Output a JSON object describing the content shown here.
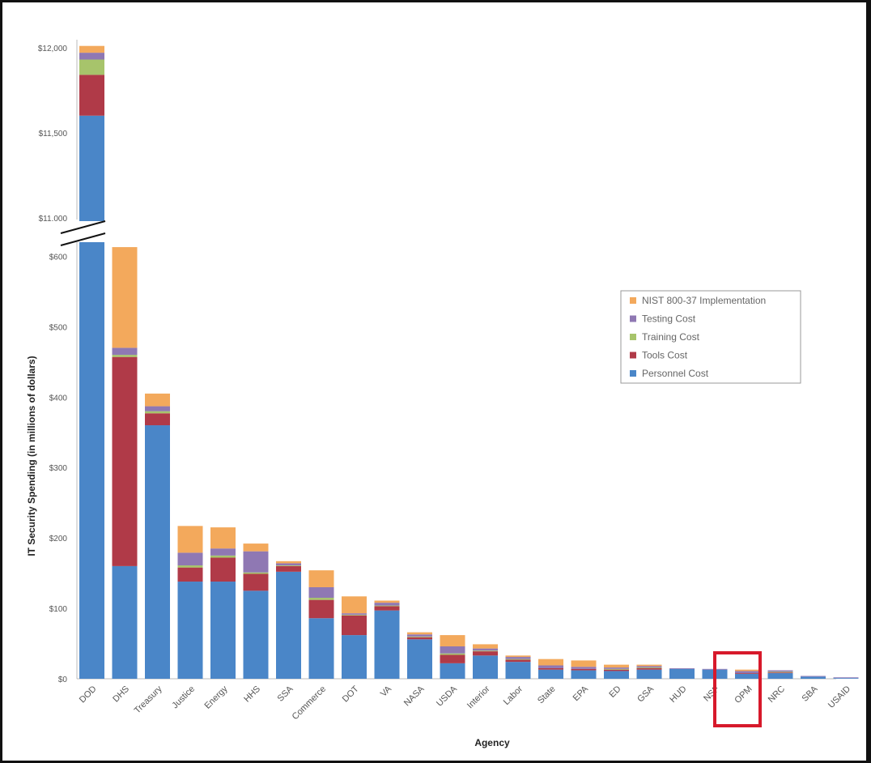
{
  "chart_data": {
    "type": "bar",
    "stacked": true,
    "xlabel": "Agency",
    "ylabel": "IT Security Spending (in millions of dollars)",
    "categories": [
      "DOD",
      "DHS",
      "Treasury",
      "Justice",
      "Energy",
      "HHS",
      "SSA",
      "Commerce",
      "DOT",
      "VA",
      "NASA",
      "USDA",
      "Interior",
      "Labor",
      "State",
      "EPA",
      "ED",
      "GSA",
      "HUD",
      "NSF",
      "OPM",
      "NRC",
      "SBA",
      "USAID"
    ],
    "y_ticks_lower": [
      "$0",
      "$100",
      "$200",
      "$300",
      "$400",
      "$500",
      "$600"
    ],
    "y_ticks_upper": [
      "$11,000",
      "$11,500",
      "$12,000"
    ],
    "axis_break": {
      "lower_ylim": [
        0,
        620
      ],
      "upper_ylim": [
        10980,
        12000
      ]
    },
    "highlighted_category": "OPM",
    "legend_position": "right",
    "series": [
      {
        "name": "Personnel Cost",
        "color": "#4a86c8",
        "values": [
          11600,
          160,
          360,
          138,
          138,
          125,
          152,
          86,
          62,
          97,
          56,
          22,
          33,
          24,
          13,
          12,
          11,
          13,
          14,
          13,
          7,
          8,
          3,
          1
        ]
      },
      {
        "name": "Tools Cost",
        "color": "#b03a48",
        "values": [
          240,
          297,
          17,
          20,
          34,
          24,
          8,
          26,
          28,
          6,
          3,
          12,
          6,
          3,
          2,
          2,
          2,
          2,
          0,
          0,
          1,
          1,
          0,
          0
        ]
      },
      {
        "name": "Training Cost",
        "color": "#a7c46b",
        "values": [
          90,
          3,
          3,
          3,
          3,
          2,
          1,
          3,
          1,
          1,
          1,
          2,
          1,
          1,
          0,
          0,
          1,
          1,
          0,
          0,
          0,
          1,
          0,
          0
        ]
      },
      {
        "name": "Testing Cost",
        "color": "#8f78b3",
        "values": [
          40,
          10,
          7,
          18,
          10,
          30,
          3,
          15,
          2,
          4,
          3,
          10,
          3,
          3,
          4,
          3,
          2,
          2,
          1,
          1,
          3,
          2,
          1,
          1
        ]
      },
      {
        "name": "NIST 800-37 Implementation",
        "color": "#f3a95c",
        "values": [
          40,
          143,
          18,
          38,
          30,
          11,
          3,
          24,
          24,
          3,
          3,
          16,
          6,
          2,
          9,
          9,
          4,
          2,
          0,
          0,
          2,
          0,
          0,
          0
        ]
      }
    ],
    "legend_order": [
      "NIST 800-37 Implementation",
      "Testing Cost",
      "Training Cost",
      "Tools Cost",
      "Personnel Cost"
    ]
  }
}
